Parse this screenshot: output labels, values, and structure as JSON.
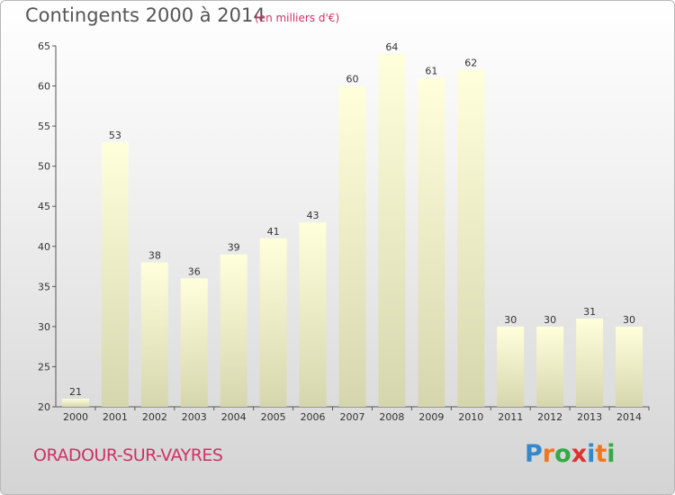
{
  "header": {
    "title": "Contingents 2000 à 2014",
    "subtitle": "(en milliers d'€)"
  },
  "footer": {
    "commune": "ORADOUR-SUR-VAYRES",
    "logo_text": "Proxiti",
    "logo_colors": [
      "#3388cc",
      "#ee7722",
      "#33aa44",
      "#dd3333",
      "#3388cc",
      "#ee7722",
      "#33aa44"
    ]
  },
  "colors": {
    "bar_top": "#ffffdc",
    "bar_bottom": "#d6d6ae",
    "accent": "#cc3366"
  },
  "chart_data": {
    "type": "bar",
    "categories": [
      "2000",
      "2001",
      "2002",
      "2003",
      "2004",
      "2005",
      "2006",
      "2007",
      "2008",
      "2009",
      "2010",
      "2011",
      "2012",
      "2013",
      "2014"
    ],
    "values": [
      21,
      53,
      38,
      36,
      39,
      41,
      43,
      60,
      64,
      61,
      62,
      30,
      30,
      31,
      30
    ],
    "ylim": [
      20,
      65
    ],
    "yticks": [
      20,
      25,
      30,
      35,
      40,
      45,
      50,
      55,
      60,
      65
    ],
    "grid": false,
    "value_labels": true
  }
}
